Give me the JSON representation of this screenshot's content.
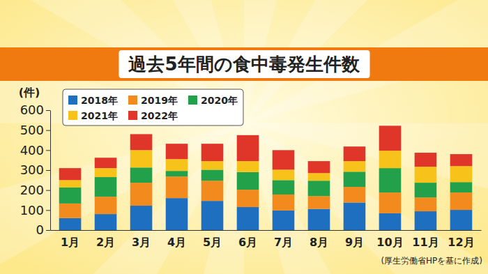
{
  "chart_data": {
    "type": "bar",
    "title": "過去5年間の食中毒発生件数",
    "y_label": "(件)",
    "note": "(厚生労働省HPを基に作成)",
    "stacked": true,
    "grid": false,
    "legend": "top-left",
    "categories": [
      "1月",
      "2月",
      "3月",
      "4月",
      "5月",
      "6月",
      "7月",
      "8月",
      "9月",
      "10月",
      "11月",
      "12月"
    ],
    "ylim": [
      0,
      600
    ],
    "yticks": [
      0,
      100,
      200,
      300,
      400,
      500,
      600
    ],
    "series": [
      {
        "name": "2018年",
        "color": "#1f6fc0",
        "values": [
          60,
          80,
          122,
          160,
          146,
          115,
          98,
          106,
          138,
          84,
          94,
          101
        ]
      },
      {
        "name": "2019年",
        "color": "#f28a1e",
        "values": [
          73,
          87,
          115,
          108,
          101,
          87,
          80,
          64,
          78,
          104,
          69,
          87
        ]
      },
      {
        "name": "2020年",
        "color": "#22a04a",
        "values": [
          80,
          98,
          76,
          28,
          55,
          88,
          72,
          77,
          76,
          122,
          74,
          52
        ]
      },
      {
        "name": "2021年",
        "color": "#f7c31a",
        "values": [
          37,
          45,
          87,
          59,
          43,
          55,
          52,
          38,
          53,
          87,
          80,
          80
        ]
      },
      {
        "name": "2022年",
        "color": "#e0362a",
        "values": [
          60,
          52,
          80,
          77,
          87,
          130,
          98,
          60,
          73,
          125,
          70,
          60
        ]
      }
    ]
  }
}
